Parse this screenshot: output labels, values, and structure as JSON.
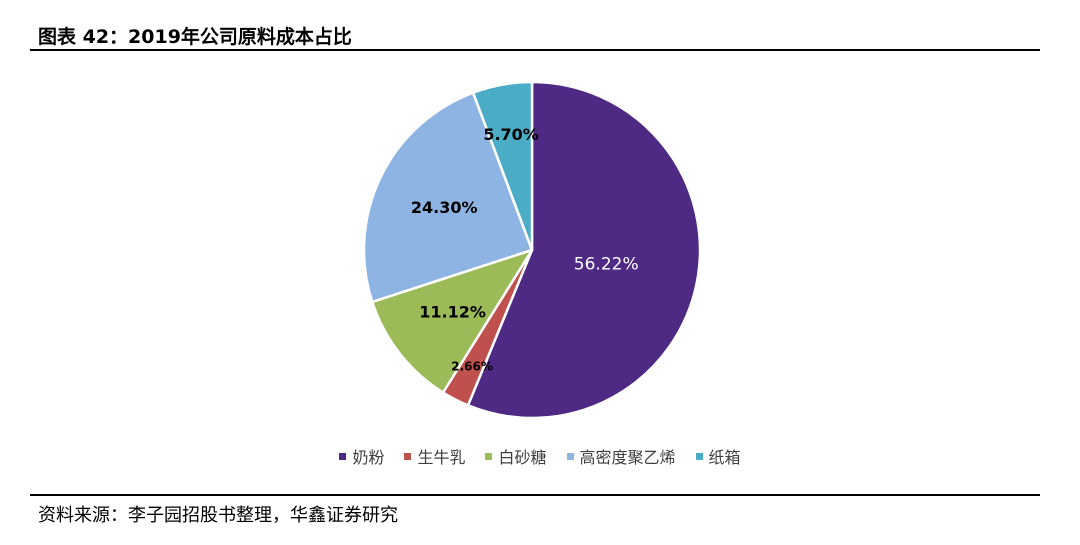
{
  "title": "图表 42：2019年公司原料成本占比",
  "source": "资料来源：李子园招股书整理，华鑫证券研究",
  "chart_data": {
    "type": "pie",
    "title": "",
    "start_angle_deg": 0,
    "direction": "clockwise",
    "categories": [
      "奶粉",
      "生牛乳",
      "白砂糖",
      "高密度聚乙烯",
      "纸箱"
    ],
    "values": [
      56.22,
      2.66,
      11.12,
      24.3,
      5.7
    ],
    "labels": [
      "56.22%",
      "2.66%",
      "11.12%",
      "24.30%",
      "5.70%"
    ],
    "colors": [
      "#4E2A84",
      "#C0504D",
      "#9BBB59",
      "#8EB4E3",
      "#4BACC6"
    ],
    "label_colors": [
      "#ffffff",
      "#000000",
      "#000000",
      "#000000",
      "#000000"
    ],
    "legend_placement": "bottom",
    "slice_border_color": "#ffffff"
  }
}
